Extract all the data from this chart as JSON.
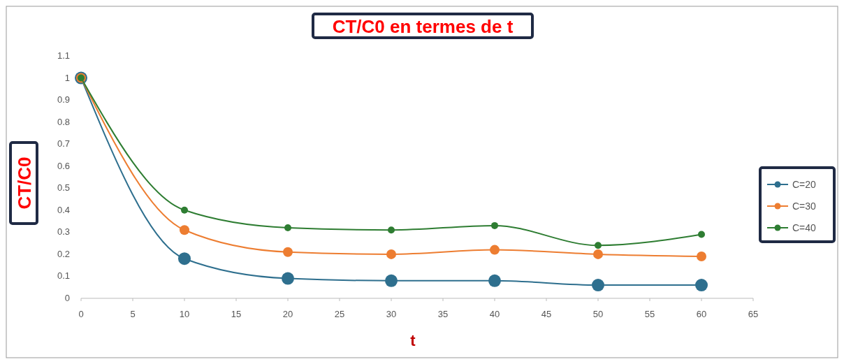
{
  "chart_data": {
    "type": "line",
    "title": "CT/C0 en termes de t",
    "xlabel": "t",
    "ylabel": "CT/C0",
    "x": [
      0,
      10,
      20,
      30,
      40,
      50,
      60
    ],
    "series": [
      {
        "name": "C=20",
        "color": "#2e6f8e",
        "values": [
          1,
          0.18,
          0.09,
          0.08,
          0.08,
          0.06,
          0.06
        ]
      },
      {
        "name": "C=30",
        "color": "#ed7d31",
        "values": [
          1,
          0.31,
          0.21,
          0.2,
          0.22,
          0.2,
          0.19
        ]
      },
      {
        "name": "C=40",
        "color": "#2e7d32",
        "values": [
          1,
          0.4,
          0.32,
          0.31,
          0.33,
          0.24,
          0.29
        ]
      }
    ],
    "xlim": [
      0,
      65
    ],
    "xticks": [
      0,
      5,
      10,
      15,
      20,
      25,
      30,
      35,
      40,
      45,
      50,
      55,
      60,
      65
    ],
    "ylim": [
      0,
      1.1
    ],
    "yticks": [
      0,
      0.1,
      0.2,
      0.3,
      0.4,
      0.5,
      0.6,
      0.7,
      0.8,
      0.9,
      1,
      1.1
    ],
    "legend": "right",
    "marker": "circle",
    "line_style": "solid"
  }
}
